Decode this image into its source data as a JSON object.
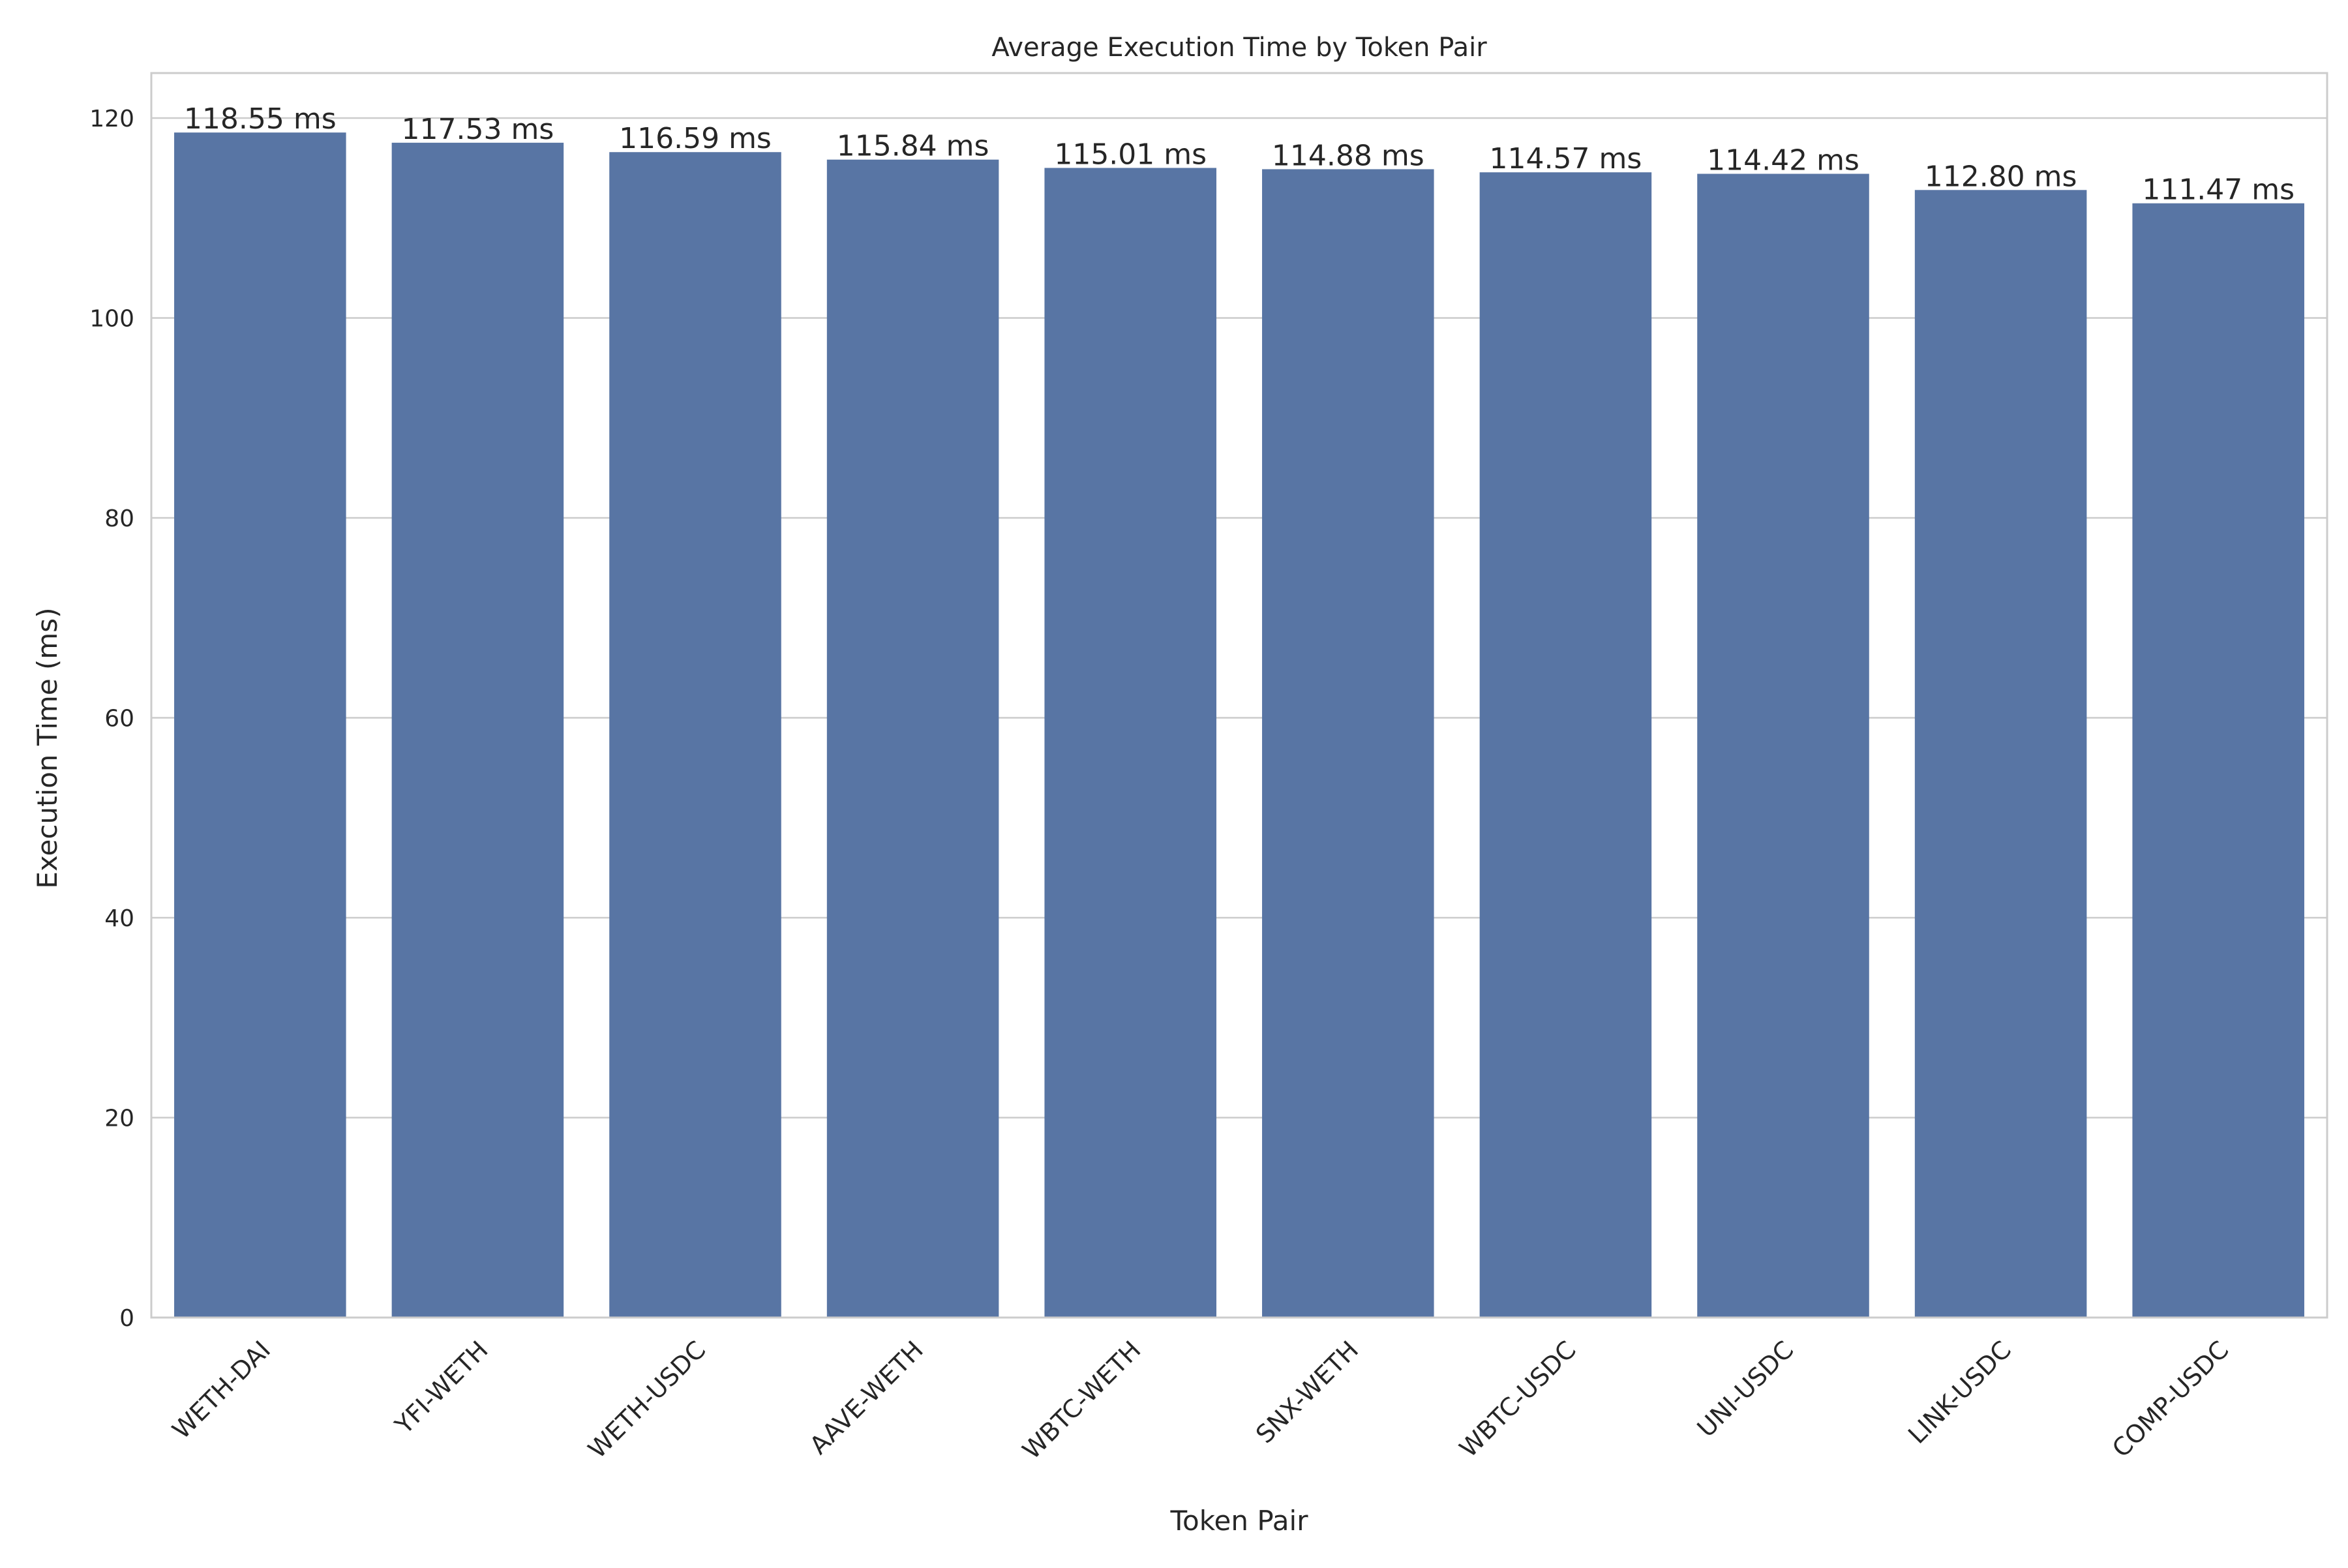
{
  "chart_data": {
    "type": "bar",
    "title": "Average Execution Time by Token Pair",
    "xlabel": "Token Pair",
    "ylabel": "Execution Time (ms)",
    "categories": [
      "WETH-DAI",
      "YFI-WETH",
      "WETH-USDC",
      "AAVE-WETH",
      "WBTC-WETH",
      "SNX-WETH",
      "WBTC-USDC",
      "UNI-USDC",
      "LINK-USDC",
      "COMP-USDC"
    ],
    "values": [
      118.55,
      117.53,
      116.59,
      115.84,
      115.01,
      114.88,
      114.57,
      114.42,
      112.8,
      111.47
    ],
    "value_labels": [
      "118.55 ms",
      "117.53 ms",
      "116.59 ms",
      "115.84 ms",
      "115.01 ms",
      "114.88 ms",
      "114.57 ms",
      "114.42 ms",
      "112.80 ms",
      "111.47 ms"
    ],
    "ylim": [
      0,
      124.5
    ],
    "yticks": [
      0,
      20,
      40,
      60,
      80,
      100,
      120
    ],
    "ytick_labels": [
      "0",
      "20",
      "40",
      "60",
      "80",
      "100",
      "120"
    ],
    "grid": "horizontal",
    "x_tick_rotation": "45 degrees",
    "bar_color": "#5875a4",
    "grid_color": "#cccccc",
    "axes_edge_color": "#cccccc"
  }
}
